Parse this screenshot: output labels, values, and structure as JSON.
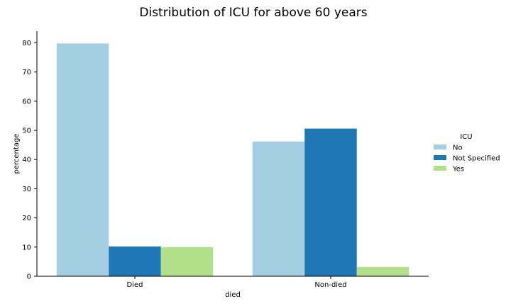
{
  "chart_data": {
    "type": "bar",
    "title": "Distribution of ICU for above 60 years",
    "xlabel": "died",
    "ylabel": "percentage",
    "categories": [
      "Died",
      "Non-died"
    ],
    "ylim": [
      0,
      84
    ],
    "yticks": [
      0,
      10,
      20,
      30,
      40,
      50,
      60,
      70,
      80
    ],
    "grid": false,
    "legend": {
      "title": "ICU",
      "placement": "right"
    },
    "series": [
      {
        "name": "No",
        "color": "#a6cee3",
        "values": [
          79.8,
          46.2
        ]
      },
      {
        "name": "Not Specified",
        "color": "#1f78b4",
        "values": [
          10.2,
          50.6
        ]
      },
      {
        "name": "Yes",
        "color": "#b2df8a",
        "values": [
          10.0,
          3.2
        ]
      }
    ]
  }
}
